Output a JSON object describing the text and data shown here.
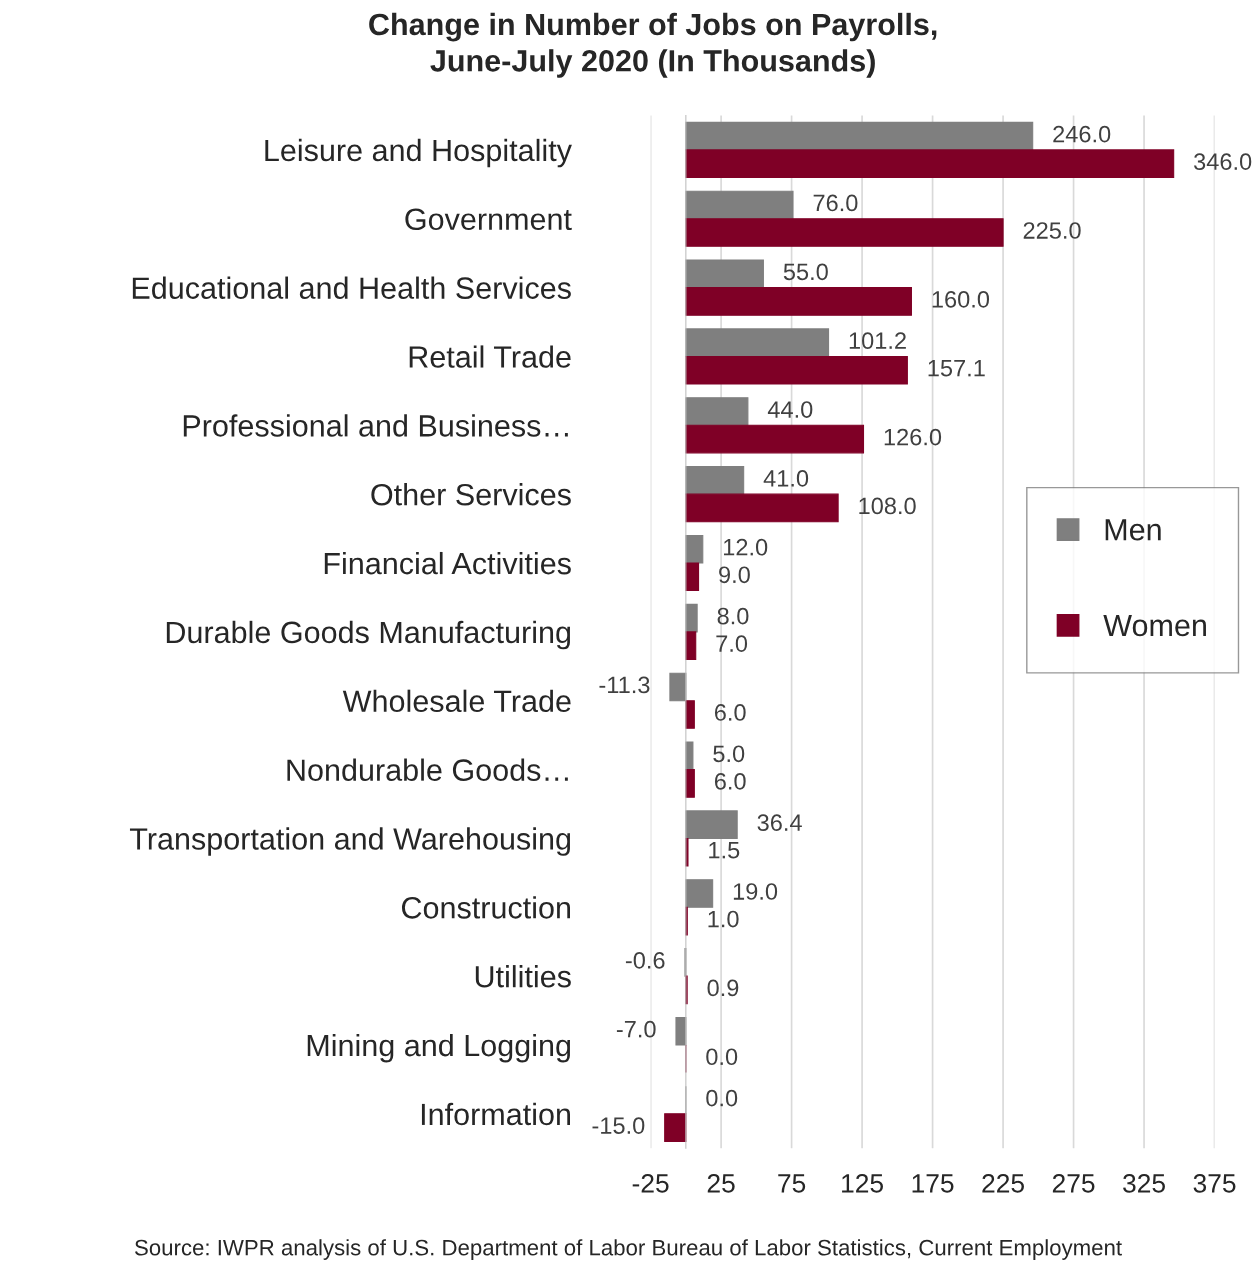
{
  "chart_data": {
    "type": "bar",
    "orientation": "horizontal",
    "title": "Change in Number of Jobs on Payrolls,\nJune-July 2020 (In Thousands)",
    "categories": [
      "Leisure and Hospitality",
      "Government",
      "Educational and Health Services",
      "Retail Trade",
      "Professional and Business…",
      "Other Services",
      "Financial Activities",
      "Durable Goods Manufacturing",
      "Wholesale Trade",
      "Nondurable Goods…",
      "Transportation and Warehousing",
      "Construction",
      "Utilities",
      "Mining and Logging",
      "Information"
    ],
    "series": [
      {
        "name": "Men",
        "color": "#7f7f7f",
        "values": [
          246.0,
          76.0,
          55.0,
          101.2,
          44.0,
          41.0,
          12.0,
          8.0,
          -11.3,
          5.0,
          36.4,
          19.0,
          -0.6,
          -7.0,
          0.0
        ],
        "value_labels": [
          "246.0",
          "76.0",
          "55.0",
          "101.2",
          "44.0",
          "41.0",
          "12.0",
          "8.0",
          "-11.3",
          "5.0",
          "36.4",
          "19.0",
          "-0.6",
          "-7.0",
          "0.0"
        ]
      },
      {
        "name": "Women",
        "color": "#7f0026",
        "values": [
          346.0,
          225.0,
          160.0,
          157.1,
          126.0,
          108.0,
          9.0,
          7.0,
          6.0,
          6.0,
          1.5,
          1.0,
          0.9,
          0.0,
          -15.0
        ],
        "value_labels": [
          "346.0",
          "225.0",
          "160.0",
          "157.1",
          "126.0",
          "108.0",
          "9.0",
          "7.0",
          "6.0",
          "6.0",
          "1.5",
          "1.0",
          "0.9",
          "0.0",
          "-15.0"
        ]
      }
    ],
    "xlim": [
      -25,
      375
    ],
    "xticks": [
      -25,
      25,
      75,
      125,
      175,
      225,
      275,
      325,
      375
    ],
    "grid": "x",
    "legend": "right",
    "annotations": [
      "Source: IWPR analysis of U.S. Department of Labor Bureau of Labor Statistics, Current Employment"
    ]
  }
}
